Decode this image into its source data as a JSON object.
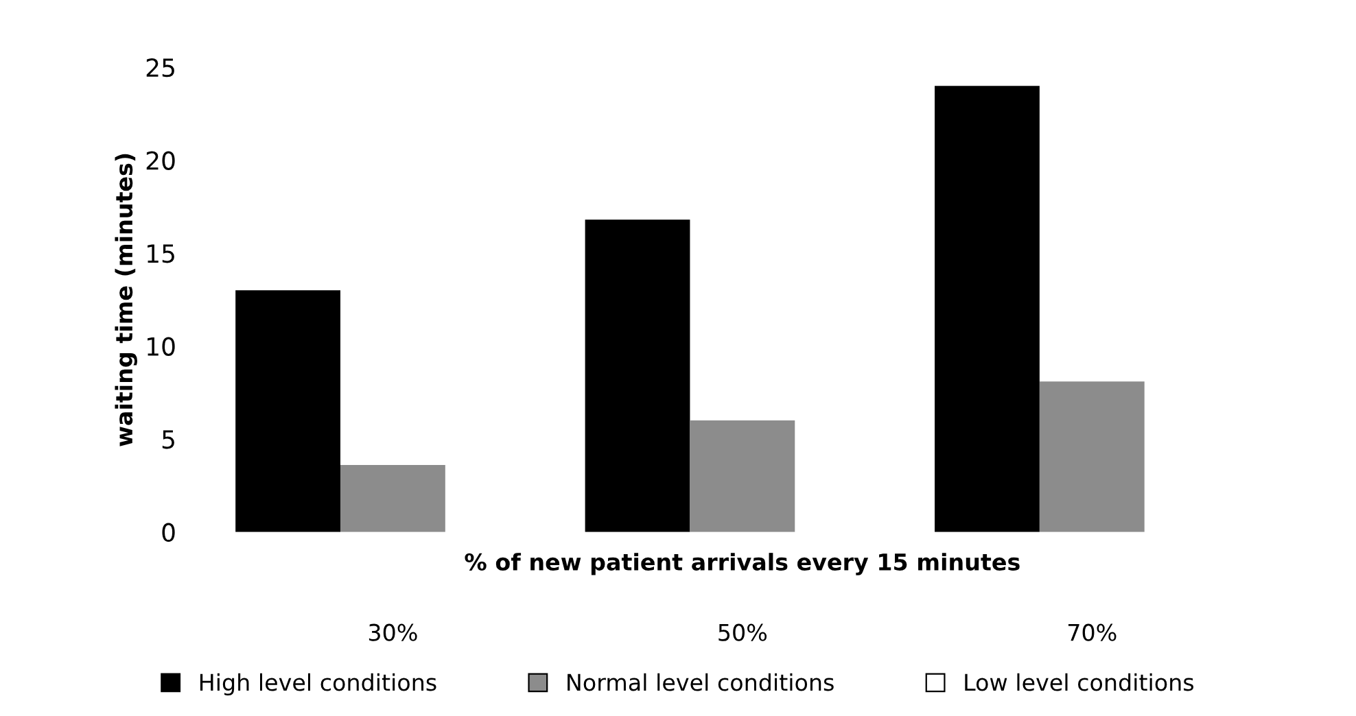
{
  "chart_data": {
    "type": "bar",
    "xlabel": "% of new patient arrivals every 15 minutes",
    "ylabel": "waiting time (minutes)",
    "categories": [
      "30%",
      "50%",
      "70%"
    ],
    "series": [
      {
        "name": "High level conditions",
        "color": "#000000",
        "values": [
          13,
          16.8,
          24
        ]
      },
      {
        "name": "Normal level conditions",
        "color": "#8c8c8c",
        "values": [
          3.6,
          6,
          8.1
        ]
      },
      {
        "name": "Low level conditions",
        "color": "#ffffff",
        "values": [
          null,
          null,
          null
        ]
      }
    ],
    "ylim": [
      0,
      25
    ],
    "yticks": [
      0,
      5,
      10,
      15,
      20,
      25
    ],
    "grid": false,
    "legend": "bottom"
  }
}
